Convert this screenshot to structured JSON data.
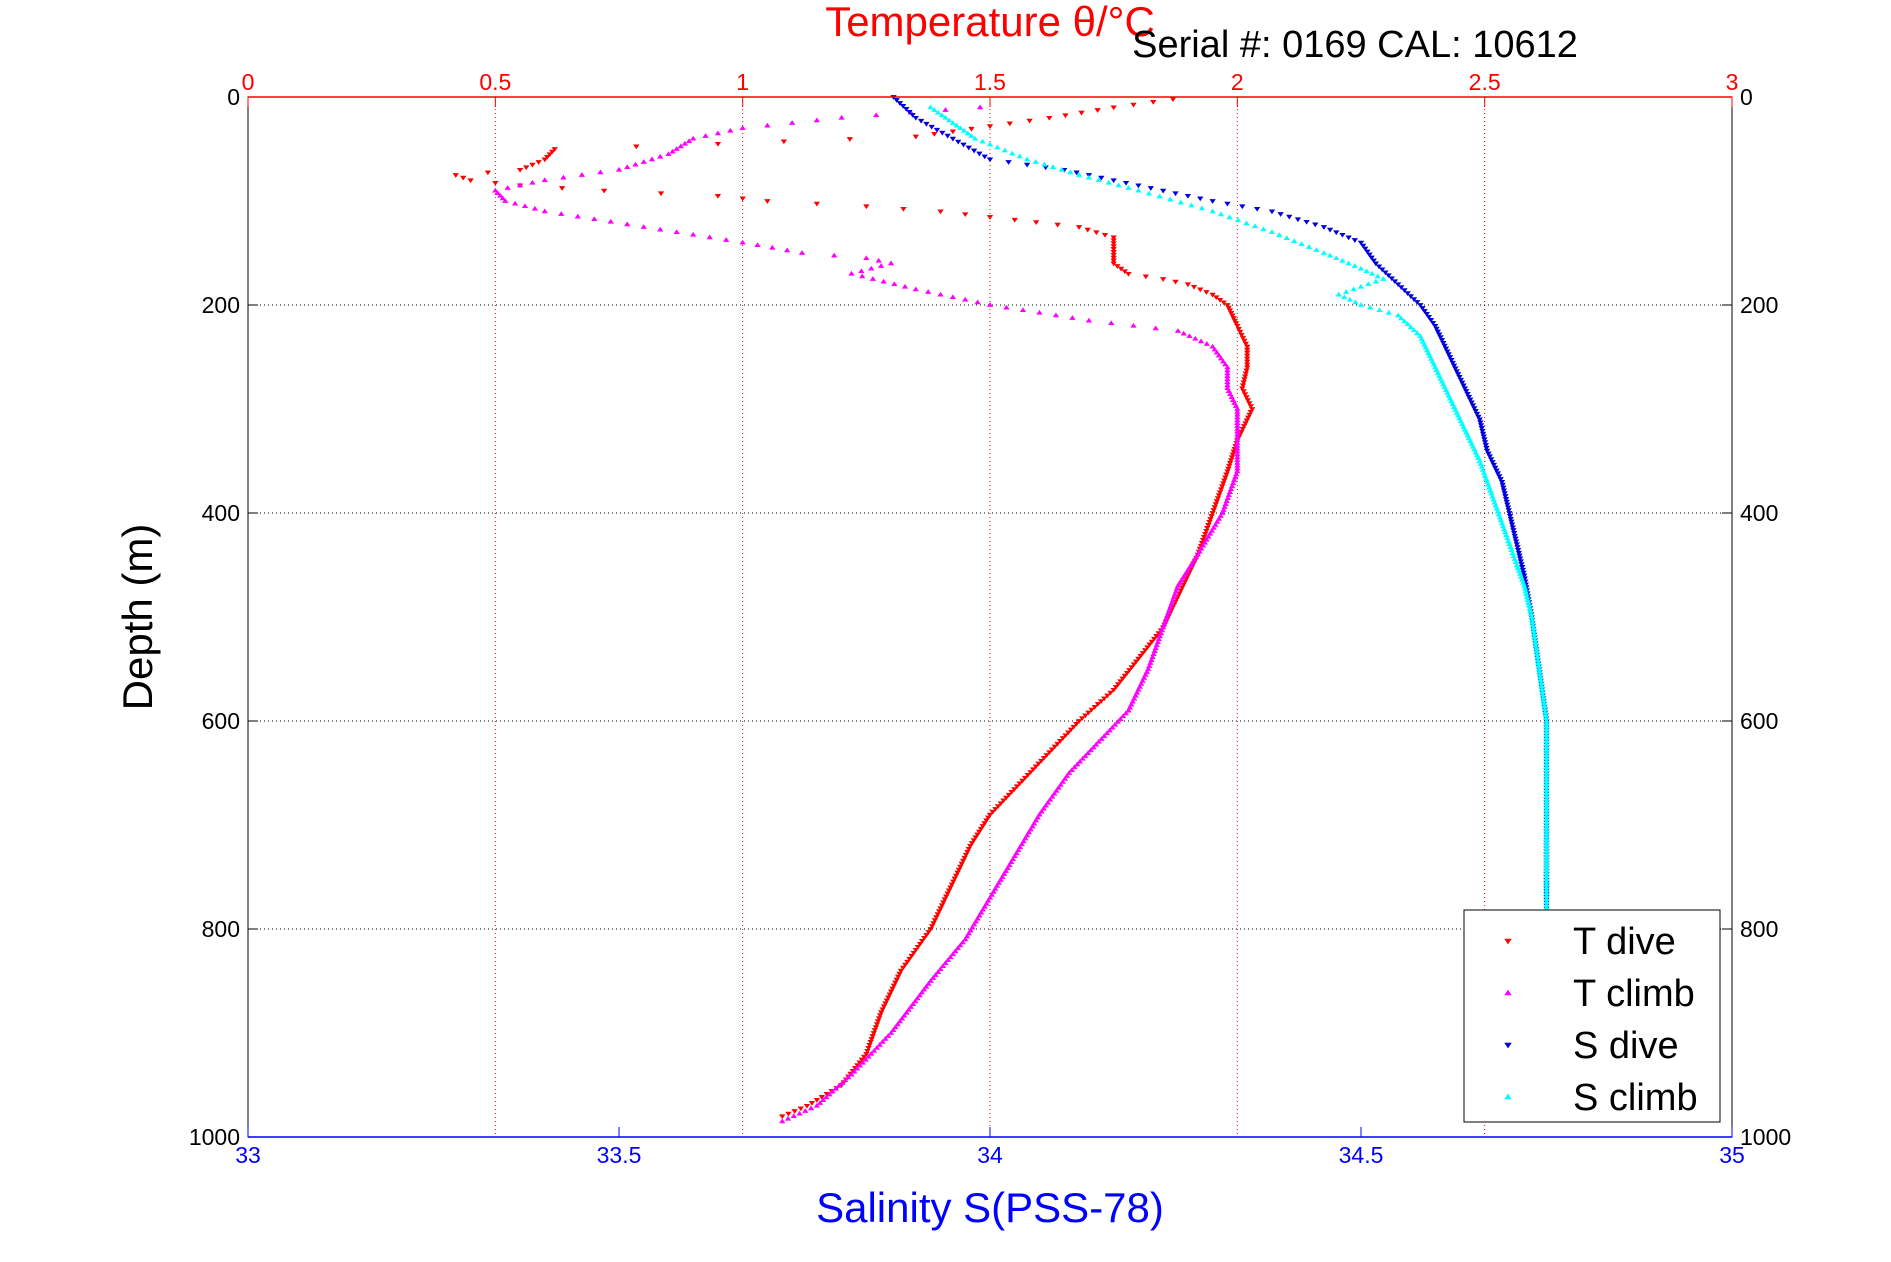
{
  "chart_data": {
    "type": "scatter",
    "title": "Temperature θ/°C",
    "subtitle": "Serial #: 0169 CAL: 10612",
    "xlabel": "Salinity S(PSS-78)",
    "ylabel": "Depth (m)",
    "x_bottom": {
      "label": "Salinity S(PSS-78)",
      "range": [
        33,
        35
      ],
      "ticks": [
        33,
        33.5,
        34,
        34.5,
        35
      ],
      "tick_labels": [
        "33",
        "33.5",
        "34",
        "34.5",
        "35"
      ],
      "color": "#0000ff"
    },
    "x_top": {
      "label": "Temperature θ/°C",
      "range": [
        0,
        3
      ],
      "ticks": [
        0,
        0.5,
        1,
        1.5,
        2,
        2.5,
        3
      ],
      "tick_labels": [
        "0",
        "0.5",
        "1",
        "1.5",
        "2",
        "2.5",
        "3"
      ],
      "color": "#ff0000"
    },
    "y": {
      "label": "Depth (m)",
      "range": [
        0,
        1000
      ],
      "reversed": true,
      "ticks": [
        0,
        200,
        400,
        600,
        800,
        1000
      ],
      "tick_labels": [
        "0",
        "200",
        "400",
        "600",
        "800",
        "1000"
      ]
    },
    "grid": true,
    "legend": {
      "position": "bottom-right",
      "entries": [
        "T dive",
        "T climb",
        "S dive",
        "S climb"
      ]
    },
    "series": [
      {
        "name": "T dive",
        "axis": "temperature",
        "color": "#ff0000",
        "marker": "triangle-down",
        "points": [
          [
            1.87,
            2
          ],
          [
            1.75,
            10
          ],
          [
            1.62,
            20
          ],
          [
            1.5,
            28
          ],
          [
            1.35,
            38
          ],
          [
            0.95,
            45
          ],
          [
            0.62,
            50
          ],
          [
            0.6,
            60
          ],
          [
            0.55,
            70
          ],
          [
            0.42,
            75
          ],
          [
            0.45,
            80
          ],
          [
            0.55,
            85
          ],
          [
            0.72,
            90
          ],
          [
            0.95,
            95
          ],
          [
            1.05,
            100
          ],
          [
            1.25,
            105
          ],
          [
            1.4,
            110
          ],
          [
            1.55,
            118
          ],
          [
            1.68,
            125
          ],
          [
            1.75,
            135
          ],
          [
            1.75,
            160
          ],
          [
            1.78,
            170
          ],
          [
            1.85,
            175
          ],
          [
            1.9,
            180
          ],
          [
            1.95,
            190
          ],
          [
            1.98,
            200
          ],
          [
            1.99,
            210
          ],
          [
            2.0,
            220
          ],
          [
            2.02,
            240
          ],
          [
            2.02,
            260
          ],
          [
            2.01,
            280
          ],
          [
            2.03,
            300
          ],
          [
            2.0,
            330
          ],
          [
            1.98,
            360
          ],
          [
            1.95,
            400
          ],
          [
            1.92,
            440
          ],
          [
            1.88,
            480
          ],
          [
            1.85,
            510
          ],
          [
            1.8,
            540
          ],
          [
            1.75,
            570
          ],
          [
            1.68,
            600
          ],
          [
            1.62,
            630
          ],
          [
            1.56,
            660
          ],
          [
            1.5,
            690
          ],
          [
            1.46,
            720
          ],
          [
            1.42,
            760
          ],
          [
            1.38,
            800
          ],
          [
            1.32,
            840
          ],
          [
            1.28,
            880
          ],
          [
            1.25,
            920
          ],
          [
            1.2,
            950
          ],
          [
            1.13,
            970
          ],
          [
            1.08,
            980
          ]
        ]
      },
      {
        "name": "T climb",
        "axis": "temperature",
        "color": "#ff00ff",
        "marker": "triangle-up",
        "points": [
          [
            1.48,
            10
          ],
          [
            1.2,
            20
          ],
          [
            1.0,
            30
          ],
          [
            0.9,
            40
          ],
          [
            0.85,
            55
          ],
          [
            0.75,
            70
          ],
          [
            0.6,
            80
          ],
          [
            0.5,
            90
          ],
          [
            0.52,
            100
          ],
          [
            0.6,
            110
          ],
          [
            0.8,
            125
          ],
          [
            1.0,
            140
          ],
          [
            1.12,
            150
          ],
          [
            1.25,
            155
          ],
          [
            1.3,
            160
          ],
          [
            1.22,
            170
          ],
          [
            1.35,
            185
          ],
          [
            1.5,
            200
          ],
          [
            1.7,
            215
          ],
          [
            1.88,
            225
          ],
          [
            1.95,
            240
          ],
          [
            1.98,
            260
          ],
          [
            1.98,
            280
          ],
          [
            2.0,
            300
          ],
          [
            2.0,
            330
          ],
          [
            2.0,
            360
          ],
          [
            1.97,
            400
          ],
          [
            1.92,
            440
          ],
          [
            1.88,
            470
          ],
          [
            1.85,
            510
          ],
          [
            1.82,
            550
          ],
          [
            1.78,
            590
          ],
          [
            1.72,
            620
          ],
          [
            1.66,
            650
          ],
          [
            1.6,
            690
          ],
          [
            1.55,
            730
          ],
          [
            1.5,
            770
          ],
          [
            1.45,
            810
          ],
          [
            1.38,
            850
          ],
          [
            1.3,
            900
          ],
          [
            1.22,
            940
          ],
          [
            1.15,
            970
          ],
          [
            1.08,
            985
          ]
        ]
      },
      {
        "name": "S dive",
        "axis": "salinity",
        "color": "#0000dd",
        "marker": "triangle-down",
        "points": [
          [
            33.87,
            0
          ],
          [
            33.9,
            20
          ],
          [
            33.95,
            40
          ],
          [
            34.0,
            60
          ],
          [
            34.1,
            70
          ],
          [
            34.2,
            85
          ],
          [
            34.3,
            100
          ],
          [
            34.38,
            110
          ],
          [
            34.45,
            125
          ],
          [
            34.5,
            140
          ],
          [
            34.52,
            160
          ],
          [
            34.55,
            180
          ],
          [
            34.58,
            200
          ],
          [
            34.6,
            220
          ],
          [
            34.62,
            250
          ],
          [
            34.64,
            280
          ],
          [
            34.66,
            310
          ],
          [
            34.67,
            340
          ],
          [
            34.69,
            370
          ],
          [
            34.7,
            400
          ],
          [
            34.71,
            430
          ],
          [
            34.72,
            460
          ],
          [
            34.73,
            500
          ],
          [
            34.74,
            550
          ],
          [
            34.75,
            600
          ],
          [
            34.75,
            650
          ],
          [
            34.75,
            700
          ],
          [
            34.75,
            750
          ],
          [
            34.75,
            780
          ]
        ]
      },
      {
        "name": "S climb",
        "axis": "salinity",
        "color": "#00ffff",
        "marker": "triangle-up",
        "points": [
          [
            33.92,
            10
          ],
          [
            33.95,
            25
          ],
          [
            33.98,
            40
          ],
          [
            34.05,
            60
          ],
          [
            34.12,
            75
          ],
          [
            34.2,
            90
          ],
          [
            34.3,
            110
          ],
          [
            34.38,
            130
          ],
          [
            34.45,
            150
          ],
          [
            34.5,
            165
          ],
          [
            34.53,
            175
          ],
          [
            34.47,
            190
          ],
          [
            34.5,
            200
          ],
          [
            34.55,
            210
          ],
          [
            34.58,
            230
          ],
          [
            34.6,
            260
          ],
          [
            34.62,
            290
          ],
          [
            34.64,
            320
          ],
          [
            34.66,
            350
          ],
          [
            34.68,
            390
          ],
          [
            34.7,
            430
          ],
          [
            34.72,
            470
          ],
          [
            34.73,
            500
          ],
          [
            34.74,
            550
          ],
          [
            34.75,
            600
          ],
          [
            34.75,
            650
          ],
          [
            34.75,
            700
          ],
          [
            34.75,
            780
          ]
        ]
      }
    ]
  }
}
